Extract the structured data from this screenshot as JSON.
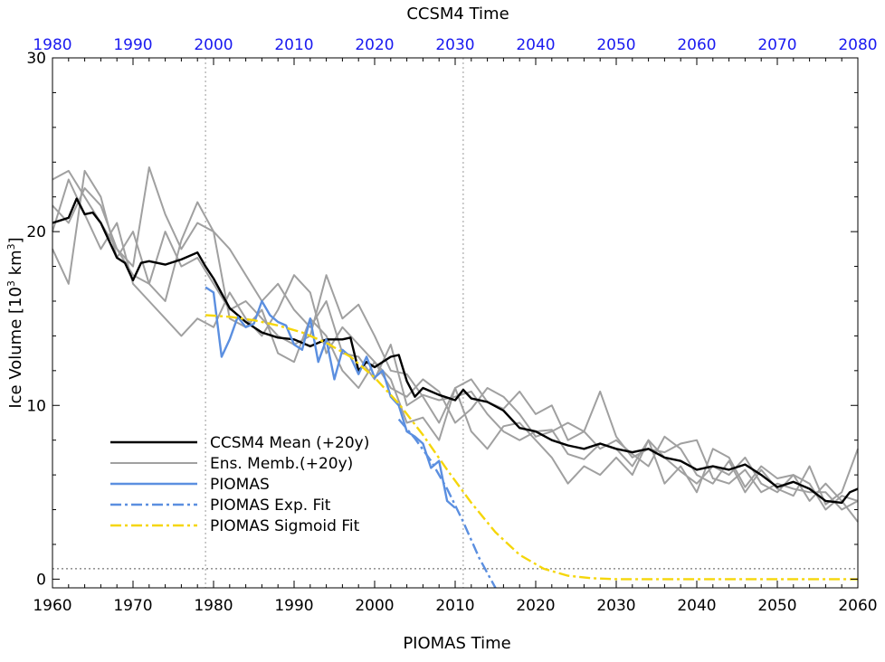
{
  "chart_data": {
    "type": "line",
    "title": "",
    "xlabel": "PIOMAS Time",
    "x2label": "CCSM4 Time",
    "ylabel_main": "Ice Volume [10",
    "ylabel_sup1": "3",
    "ylabel_mid": " km",
    "ylabel_sup2": "3",
    "ylabel_end": "]",
    "xlim": [
      1960,
      2060
    ],
    "x2lim": [
      1980,
      2080
    ],
    "ylim": [
      -0.5,
      30
    ],
    "xticks": [
      1960,
      1970,
      1980,
      1990,
      2000,
      2010,
      2020,
      2030,
      2040,
      2050,
      2060
    ],
    "x2ticks": [
      1980,
      1990,
      2000,
      2010,
      2020,
      2030,
      2040,
      2050,
      2060,
      2070,
      2080
    ],
    "yticks": [
      0,
      10,
      20,
      30
    ],
    "grid": false,
    "legend_position": "lower-left",
    "colors": {
      "mean": "#000000",
      "members": "#a0a0a0",
      "piomas": "#5b8fe0",
      "exp_fit": "#5b8fe0",
      "sigmoid_fit": "#f5d60a",
      "top_axis": "#1a1af0"
    },
    "reference_lines": {
      "vertical_dotted_x": [
        1979,
        2011
      ],
      "horizontal_dotted_y": 0.6
    },
    "legend": [
      {
        "label": "CCSM4 Mean (+20y)",
        "key": "mean",
        "style": "solid"
      },
      {
        "label": "Ens. Memb.(+20y)",
        "key": "members",
        "style": "solid"
      },
      {
        "label": "PIOMAS",
        "key": "piomas",
        "style": "solid"
      },
      {
        "label": "PIOMAS Exp. Fit",
        "key": "exp_fit",
        "style": "dashdot"
      },
      {
        "label": "PIOMAS Sigmoid Fit",
        "key": "sigmoid_fit",
        "style": "dashdot"
      }
    ],
    "series": [
      {
        "key": "mean",
        "x": [
          1960,
          1962,
          1963,
          1964,
          1965,
          1966,
          1968,
          1969,
          1970,
          1971,
          1972,
          1974,
          1976,
          1978,
          1979,
          1980,
          1982,
          1984,
          1986,
          1988,
          1990,
          1992,
          1994,
          1996,
          1997,
          1998,
          1999,
          2000,
          2002,
          2003,
          2004,
          2005,
          2006,
          2008,
          2010,
          2011,
          2012,
          2014,
          2016,
          2018,
          2020,
          2022,
          2024,
          2026,
          2028,
          2030,
          2032,
          2034,
          2036,
          2038,
          2040,
          2042,
          2044,
          2046,
          2048,
          2050,
          2052,
          2054,
          2056,
          2058,
          2059,
          2060
        ],
        "y": [
          20.5,
          20.8,
          21.9,
          21.0,
          21.1,
          20.5,
          18.5,
          18.2,
          17.2,
          18.2,
          18.3,
          18.1,
          18.4,
          18.8,
          18.0,
          17.3,
          15.6,
          14.8,
          14.2,
          13.9,
          13.8,
          13.4,
          13.8,
          13.8,
          13.9,
          12.0,
          12.5,
          12.2,
          12.8,
          12.9,
          11.4,
          10.5,
          11.0,
          10.6,
          10.3,
          10.9,
          10.4,
          10.2,
          9.7,
          8.7,
          8.5,
          8.0,
          7.7,
          7.5,
          7.8,
          7.5,
          7.3,
          7.5,
          7.0,
          6.8,
          6.3,
          6.5,
          6.3,
          6.6,
          6.0,
          5.3,
          5.6,
          5.2,
          4.5,
          4.4,
          5.0,
          5.2
        ]
      },
      {
        "key": "members",
        "x": [
          1960,
          1962,
          1964,
          1966,
          1968,
          1970,
          1972,
          1974,
          1976,
          1978,
          1980,
          1982,
          1984,
          1986,
          1988,
          1990,
          1992,
          1994,
          1996,
          1998,
          2000,
          2002,
          2004,
          2006,
          2008,
          2010,
          2012,
          2014,
          2016,
          2018,
          2020,
          2022,
          2024,
          2026,
          2028,
          2030,
          2032,
          2034,
          2036,
          2038,
          2040,
          2042,
          2044,
          2046,
          2048,
          2050,
          2052,
          2054,
          2056,
          2058,
          2060
        ],
        "y": [
          23.0,
          23.5,
          22.0,
          20.5,
          19.0,
          18.0,
          23.7,
          21.0,
          19.0,
          20.5,
          20.0,
          19.0,
          17.5,
          16.0,
          17.0,
          15.5,
          14.5,
          16.0,
          13.0,
          12.8,
          11.5,
          13.5,
          10.0,
          10.6,
          10.3,
          10.5,
          10.8,
          9.5,
          8.5,
          8.0,
          8.5,
          8.6,
          7.2,
          6.9,
          7.8,
          7.5,
          6.5,
          8.0,
          7.0,
          6.2,
          5.5,
          6.5,
          6.0,
          7.0,
          5.5,
          5.0,
          6.0,
          5.5,
          4.0,
          4.8,
          4.5
        ]
      },
      {
        "key": "members",
        "x": [
          1960,
          1962,
          1964,
          1966,
          1968,
          1970,
          1972,
          1974,
          1976,
          1978,
          1980,
          1982,
          1984,
          1986,
          1988,
          1990,
          1992,
          1994,
          1996,
          1998,
          2000,
          2002,
          2004,
          2006,
          2008,
          2010,
          2012,
          2014,
          2016,
          2018,
          2020,
          2022,
          2024,
          2026,
          2028,
          2030,
          2032,
          2034,
          2036,
          2038,
          2040,
          2042,
          2044,
          2046,
          2048,
          2050,
          2052,
          2054,
          2056,
          2058,
          2060
        ],
        "y": [
          19.0,
          17.0,
          23.5,
          22.0,
          18.5,
          20.0,
          17.0,
          16.0,
          19.5,
          21.7,
          20.0,
          15.0,
          14.5,
          15.5,
          13.0,
          12.5,
          15.0,
          14.0,
          12.0,
          11.0,
          12.5,
          11.5,
          9.0,
          9.3,
          8.0,
          11.0,
          8.5,
          7.5,
          8.8,
          9.0,
          8.0,
          7.0,
          5.5,
          6.5,
          6.0,
          7.0,
          6.0,
          8.0,
          5.5,
          6.5,
          5.0,
          7.5,
          7.0,
          5.3,
          6.5,
          5.8,
          6.0,
          4.5,
          5.5,
          4.5,
          3.3
        ]
      },
      {
        "key": "members",
        "x": [
          1960,
          1962,
          1964,
          1966,
          1968,
          1970,
          1972,
          1974,
          1976,
          1978,
          1980,
          1982,
          1984,
          1986,
          1988,
          1990,
          1992,
          1994,
          1996,
          1998,
          2000,
          2002,
          2004,
          2006,
          2008,
          2010,
          2012,
          2014,
          2016,
          2018,
          2020,
          2022,
          2024,
          2026,
          2028,
          2030,
          2032,
          2034,
          2036,
          2038,
          2040,
          2042,
          2044,
          2046,
          2048,
          2050,
          2052,
          2054,
          2056,
          2058,
          2060
        ],
        "y": [
          20.0,
          23.0,
          21.0,
          19.0,
          20.5,
          17.0,
          16.0,
          15.0,
          14.0,
          15.0,
          14.5,
          16.5,
          15.0,
          14.0,
          15.5,
          17.5,
          16.5,
          13.0,
          14.5,
          13.5,
          12.5,
          11.0,
          10.5,
          11.5,
          10.8,
          9.0,
          9.8,
          11.0,
          10.5,
          9.5,
          8.2,
          8.5,
          9.0,
          8.5,
          7.5,
          8.0,
          7.2,
          6.5,
          8.2,
          7.5,
          6.0,
          5.5,
          6.8,
          5.0,
          6.3,
          5.2,
          4.8,
          6.5,
          4.3,
          5.0,
          7.5
        ]
      },
      {
        "key": "members",
        "x": [
          1960,
          1962,
          1964,
          1966,
          1968,
          1970,
          1972,
          1974,
          1976,
          1978,
          1980,
          1982,
          1984,
          1986,
          1988,
          1990,
          1992,
          1994,
          1996,
          1998,
          2000,
          2002,
          2004,
          2006,
          2008,
          2010,
          2012,
          2014,
          2016,
          2018,
          2020,
          2022,
          2024,
          2026,
          2028,
          2030,
          2032,
          2034,
          2036,
          2038,
          2040,
          2042,
          2044,
          2046,
          2048,
          2050,
          2052,
          2054,
          2056,
          2058,
          2060
        ],
        "y": [
          21.5,
          20.5,
          22.5,
          21.5,
          19.0,
          17.5,
          17.0,
          20.0,
          18.0,
          18.5,
          17.0,
          15.5,
          16.0,
          15.0,
          14.0,
          13.5,
          14.0,
          17.5,
          15.0,
          15.8,
          14.0,
          12.0,
          11.8,
          10.5,
          9.0,
          11.0,
          11.5,
          10.2,
          9.8,
          10.8,
          9.5,
          10.0,
          8.0,
          8.5,
          10.8,
          8.2,
          7.0,
          7.5,
          7.3,
          7.8,
          8.0,
          5.8,
          5.5,
          6.3,
          5.0,
          5.5,
          5.2,
          5.0,
          5.0,
          4.0,
          4.5
        ]
      },
      {
        "key": "piomas",
        "x": [
          1979,
          1980,
          1981,
          1982,
          1983,
          1984,
          1985,
          1986,
          1987,
          1988,
          1989,
          1990,
          1991,
          1992,
          1993,
          1994,
          1995,
          1996,
          1997,
          1998,
          1999,
          2000,
          2001,
          2002,
          2003,
          2004,
          2005,
          2006,
          2007,
          2008,
          2009,
          2010
        ],
        "y": [
          16.8,
          16.5,
          12.8,
          13.8,
          15.1,
          14.5,
          14.7,
          16.0,
          15.2,
          14.8,
          14.6,
          13.5,
          13.2,
          15.0,
          12.5,
          13.8,
          11.5,
          13.2,
          12.8,
          11.8,
          12.8,
          11.6,
          12.0,
          10.5,
          10.0,
          8.5,
          8.2,
          7.8,
          6.4,
          6.8,
          4.5,
          4.1
        ]
      },
      {
        "key": "exp_fit",
        "x": [
          2003,
          2005,
          2007,
          2009,
          2011,
          2013,
          2015
        ],
        "y": [
          9.2,
          8.1,
          6.8,
          5.2,
          3.3,
          1.2,
          -0.5
        ]
      },
      {
        "key": "sigmoid_fit",
        "x": [
          1979,
          1982,
          1985,
          1988,
          1991,
          1994,
          1997,
          2000,
          2003,
          2006,
          2009,
          2012,
          2015,
          2018,
          2021,
          2024,
          2027,
          2030,
          2035,
          2040,
          2045,
          2050,
          2055,
          2060
        ],
        "y": [
          15.2,
          15.1,
          14.9,
          14.6,
          14.2,
          13.6,
          12.8,
          11.6,
          10.1,
          8.3,
          6.3,
          4.4,
          2.7,
          1.4,
          0.6,
          0.2,
          0.05,
          0,
          0,
          0,
          0,
          0,
          0,
          0
        ]
      }
    ]
  }
}
